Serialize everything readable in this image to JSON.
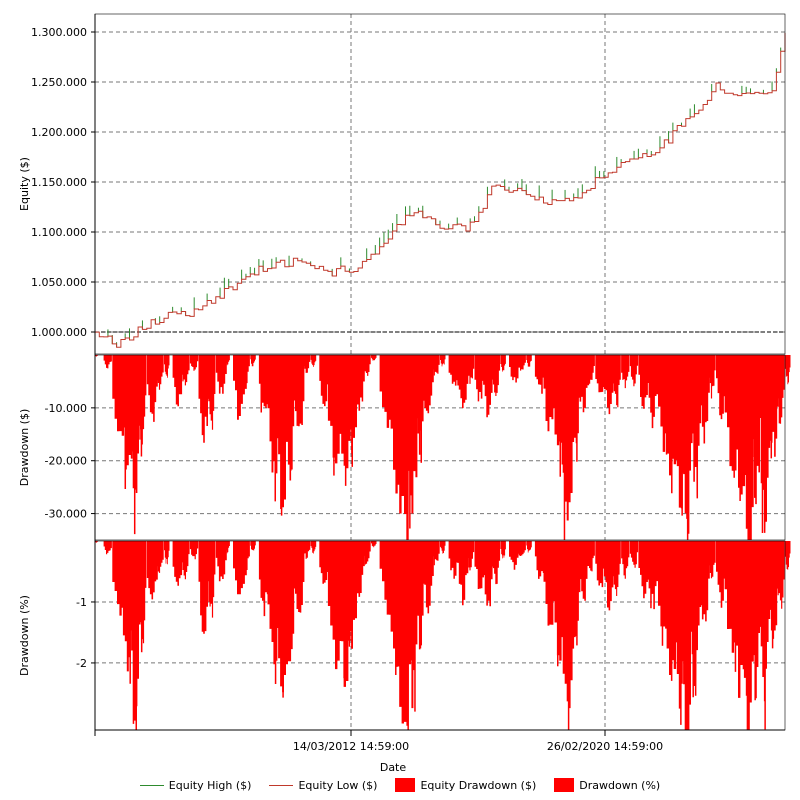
{
  "chart_data": [
    {
      "type": "line",
      "ylabel": "Equity ($)",
      "ylim": [
        978000,
        1318000
      ],
      "yticks": [
        1000000,
        1050000,
        1100000,
        1150000,
        1200000,
        1250000,
        1300000
      ],
      "ytick_labels": [
        "1.000.000",
        "1.050.000",
        "1.100.000",
        "1.150.000",
        "1.200.000",
        "1.250.000",
        "1.300.000"
      ],
      "colors": {
        "high": "#2e8b2e",
        "low": "#c0392b"
      },
      "series": [
        {
          "name": "Equity High ($)"
        },
        {
          "name": "Equity Low ($)"
        }
      ],
      "x": [
        0,
        3,
        6,
        10,
        14,
        18,
        22,
        26,
        30,
        34,
        38,
        42,
        46,
        50,
        54,
        58,
        62,
        66,
        70,
        74,
        78,
        82,
        86,
        90,
        94,
        98,
        100
      ],
      "y": [
        1000000,
        988000,
        1000000,
        1015000,
        1020000,
        1035000,
        1058000,
        1068000,
        1072000,
        1060000,
        1065000,
        1090000,
        1120000,
        1108000,
        1102000,
        1148000,
        1140000,
        1128000,
        1135000,
        1160000,
        1175000,
        1185000,
        1215000,
        1245000,
        1235000,
        1240000,
        1300000
      ]
    },
    {
      "type": "area",
      "ylabel": "Drawdown ($)",
      "ylim": [
        -35000,
        0
      ],
      "yticks": [
        -10000,
        -20000,
        -30000
      ],
      "ytick_labels": [
        "-10.000",
        "-20.000",
        "-30.000"
      ],
      "color": "#ff0000",
      "series": [
        {
          "name": "Equity Drawdown ($)"
        }
      ]
    },
    {
      "type": "area",
      "ylabel": "Drawdown (%)",
      "ylim": [
        -3.1,
        0
      ],
      "yticks": [
        -1,
        -2
      ],
      "ytick_labels": [
        "-1",
        "-2"
      ],
      "color": "#ff0000",
      "series": [
        {
          "name": "Drawdown (%)"
        }
      ]
    }
  ],
  "x_axis": {
    "label": "Date",
    "tick_labels": [
      "14/03/2012 14:59:00",
      "26/02/2020 14:59:00"
    ]
  },
  "drawdown_events": [
    [
      0,
      0.5,
      0.3
    ],
    [
      1,
      1.5,
      2.2
    ],
    [
      2,
      3,
      14
    ],
    [
      3,
      2.5,
      22
    ],
    [
      4,
      2,
      30
    ],
    [
      5,
      1.5,
      18
    ],
    [
      6,
      2,
      12
    ],
    [
      7,
      1.5,
      6
    ],
    [
      8,
      1,
      4
    ],
    [
      9,
      2,
      9
    ],
    [
      10,
      1.5,
      6
    ],
    [
      11,
      1.5,
      3
    ],
    [
      12,
      2,
      15
    ],
    [
      13,
      1.5,
      13
    ],
    [
      14,
      2,
      7
    ],
    [
      15,
      1,
      2
    ],
    [
      16,
      2.5,
      11
    ],
    [
      17,
      1.5,
      5
    ],
    [
      18,
      1,
      2
    ],
    [
      19,
      2,
      12
    ],
    [
      20,
      2.5,
      24
    ],
    [
      21,
      2.5,
      27
    ],
    [
      22,
      2,
      20
    ],
    [
      23,
      2,
      15
    ],
    [
      24,
      1.5,
      3
    ],
    [
      25,
      1,
      2
    ],
    [
      26,
      2,
      9
    ],
    [
      27,
      3,
      21
    ],
    [
      28,
      3,
      23
    ],
    [
      29,
      2.5,
      18
    ],
    [
      30,
      2,
      10
    ],
    [
      31,
      1.5,
      4
    ],
    [
      32,
      1,
      1
    ],
    [
      33,
      3,
      12
    ],
    [
      34,
      3,
      22
    ],
    [
      35,
      3,
      34
    ],
    [
      36,
      2.5,
      28
    ],
    [
      37,
      2,
      18
    ],
    [
      38,
      2,
      12
    ],
    [
      39,
      1.5,
      4
    ],
    [
      40,
      1,
      2
    ],
    [
      41,
      2,
      6
    ],
    [
      42,
      2,
      10
    ],
    [
      43,
      1.5,
      5
    ],
    [
      44,
      2,
      8
    ],
    [
      45,
      2,
      11
    ],
    [
      46,
      1.5,
      7
    ],
    [
      47,
      1,
      3
    ],
    [
      48,
      2,
      5
    ],
    [
      49,
      1.5,
      3
    ],
    [
      50,
      1,
      2
    ],
    [
      51,
      2,
      7
    ],
    [
      52,
      2.5,
      14
    ],
    [
      53,
      3,
      20
    ],
    [
      54,
      2.5,
      33
    ],
    [
      55,
      2,
      18
    ],
    [
      56,
      2,
      10
    ],
    [
      57,
      1.5,
      5
    ],
    [
      58,
      2,
      8
    ],
    [
      59,
      2,
      11
    ],
    [
      60,
      1.5,
      9
    ],
    [
      61,
      1.5,
      6
    ],
    [
      62,
      1.5,
      5
    ],
    [
      63,
      2,
      9
    ],
    [
      64,
      2,
      12
    ],
    [
      65,
      3,
      16
    ],
    [
      66,
      3,
      22
    ],
    [
      67,
      2.5,
      28
    ],
    [
      68,
      2,
      36
    ],
    [
      69,
      2,
      24
    ],
    [
      70,
      2,
      14
    ],
    [
      71,
      1.5,
      7
    ],
    [
      72,
      2,
      11
    ],
    [
      73,
      3,
      20
    ],
    [
      74,
      3,
      26
    ],
    [
      75,
      2.5,
      34
    ],
    [
      76,
      2,
      25
    ],
    [
      77,
      2,
      30
    ],
    [
      78,
      2,
      18
    ],
    [
      79,
      1.5,
      12
    ],
    [
      80,
      1,
      5
    ]
  ],
  "legend": {
    "items": [
      {
        "label": "Equity High ($)",
        "style": "line",
        "color": "#2e8b2e"
      },
      {
        "label": "Equity Low ($)",
        "style": "line",
        "color": "#c0392b"
      },
      {
        "label": "Equity Drawdown ($)",
        "style": "box",
        "color": "#ff0000"
      },
      {
        "label": "Drawdown (%)",
        "style": "box",
        "color": "#ff0000"
      }
    ]
  }
}
